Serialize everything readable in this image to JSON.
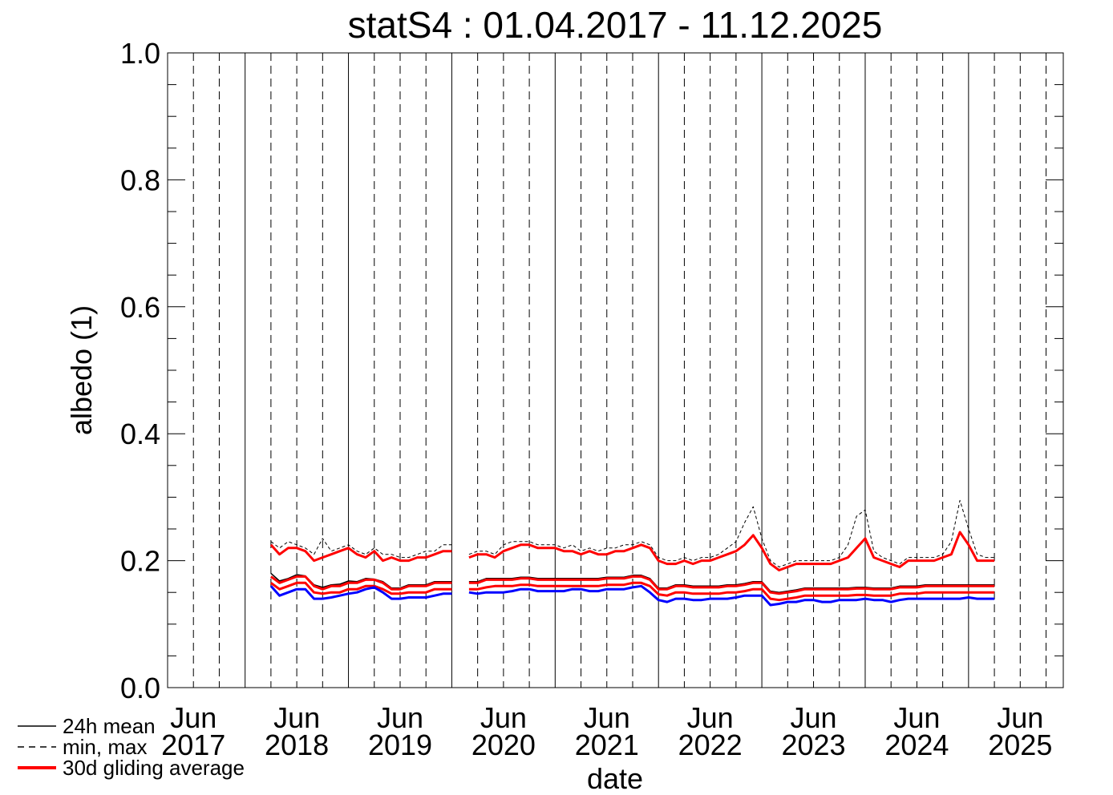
{
  "chart_data": {
    "type": "line",
    "title": "statS4 : 01.04.2017 - 11.12.2025",
    "xlabel": "date",
    "ylabel": "albedo (1)",
    "xlim": [
      "2017-04",
      "2025-12"
    ],
    "ylim": [
      0,
      1
    ],
    "yticks": [
      {
        "value": 0,
        "label": "0.0"
      },
      0.2,
      0.4,
      0.6,
      0.8,
      {
        "value": 1,
        "label": "1.0"
      }
    ],
    "yminorticks": [
      0.05,
      0.1,
      0.15,
      0.25,
      0.3,
      0.35,
      0.45,
      0.5,
      0.55,
      0.65,
      0.7,
      0.75,
      0.85,
      0.9,
      0.95
    ],
    "xticks": [
      {
        "value": "2017-07",
        "label": [
          "Jun",
          "2017"
        ]
      },
      {
        "value": "2018-07",
        "label": [
          "Jun",
          "2018"
        ]
      },
      {
        "value": "2019-07",
        "label": [
          "Jun",
          "2019"
        ]
      },
      {
        "value": "2020-07",
        "label": [
          "Jun",
          "2020"
        ]
      },
      {
        "value": "2021-07",
        "label": [
          "Jun",
          "2021"
        ]
      },
      {
        "value": "2022-07",
        "label": [
          "Jun",
          "2022"
        ]
      },
      {
        "value": "2023-07",
        "label": [
          "Jun",
          "2023"
        ]
      },
      {
        "value": "2024-07",
        "label": [
          "Jun",
          "2024"
        ]
      },
      {
        "value": "2025-07",
        "label": [
          "Jun",
          "2025"
        ]
      }
    ],
    "xgrid_solid": [
      "2018-01",
      "2019-01",
      "2020-01",
      "2021-01",
      "2022-01",
      "2023-01",
      "2024-01",
      "2025-01"
    ],
    "xgrid_dashed": [
      "2017-10",
      "2018-04",
      "2018-10",
      "2019-04",
      "2019-10",
      "2020-04",
      "2020-10",
      "2021-04",
      "2021-10",
      "2022-04",
      "2022-10",
      "2023-04",
      "2023-10",
      "2024-04",
      "2024-10",
      "2025-04",
      "2025-10"
    ],
    "legend": [
      {
        "label": "24h mean",
        "color": "#000000",
        "dash": false,
        "width": 1.5
      },
      {
        "label": "min, max",
        "color": "#000000",
        "dash": true,
        "width": 1.5
      },
      {
        "label": "30d gliding average",
        "color": "#ff0000",
        "dash": false,
        "width": 4
      }
    ],
    "x": [
      "2018-04",
      "2018-05",
      "2018-06",
      "2018-07",
      "2018-08",
      "2018-09",
      "2018-10",
      "2018-11",
      "2018-12",
      "2019-01",
      "2019-02",
      "2019-03",
      "2019-04",
      "2019-05",
      "2019-06",
      "2019-07",
      "2019-08",
      "2019-09",
      "2019-10",
      "2019-11",
      "2019-12",
      "2020-01",
      "2020-02",
      "2020-03",
      "2020-04",
      "2020-05",
      "2020-06",
      "2020-07",
      "2020-08",
      "2020-09",
      "2020-10",
      "2020-11",
      "2020-12",
      "2021-01",
      "2021-02",
      "2021-03",
      "2021-04",
      "2021-05",
      "2021-06",
      "2021-07",
      "2021-08",
      "2021-09",
      "2021-10",
      "2021-11",
      "2021-12",
      "2022-01",
      "2022-02",
      "2022-03",
      "2022-04",
      "2022-05",
      "2022-06",
      "2022-07",
      "2022-08",
      "2022-09",
      "2022-10",
      "2022-11",
      "2022-12",
      "2023-01",
      "2023-02",
      "2023-03",
      "2023-04",
      "2023-05",
      "2023-06",
      "2023-07",
      "2023-08",
      "2023-09",
      "2023-10",
      "2023-11",
      "2023-12",
      "2024-01",
      "2024-02",
      "2024-03",
      "2024-04",
      "2024-05",
      "2024-06",
      "2024-07",
      "2024-08",
      "2024-09",
      "2024-10",
      "2024-11",
      "2024-12",
      "2025-01",
      "2025-02",
      "2025-03",
      "2025-04"
    ],
    "series": [
      {
        "color": "#000000",
        "dash": true,
        "width": 1,
        "values": [
          0.23,
          0.22,
          0.23,
          0.225,
          0.22,
          0.21,
          0.235,
          0.215,
          0.22,
          0.225,
          0.215,
          0.21,
          0.22,
          0.21,
          0.21,
          0.205,
          0.205,
          0.21,
          0.215,
          0.215,
          0.225,
          0.225,
          null,
          0.21,
          0.215,
          0.215,
          0.21,
          0.225,
          0.23,
          0.23,
          0.23,
          0.225,
          0.225,
          0.225,
          0.22,
          0.225,
          0.215,
          0.22,
          0.215,
          0.22,
          0.22,
          0.225,
          0.225,
          0.23,
          0.225,
          0.205,
          0.2,
          0.2,
          0.205,
          0.2,
          0.205,
          0.205,
          0.21,
          0.22,
          0.23,
          0.26,
          0.285,
          0.235,
          0.2,
          0.19,
          0.195,
          0.2,
          0.2,
          0.2,
          0.2,
          0.2,
          0.205,
          0.225,
          0.27,
          0.28,
          0.215,
          0.205,
          0.2,
          0.195,
          0.205,
          0.205,
          0.205,
          0.205,
          0.21,
          0.23,
          0.295,
          0.25,
          0.21,
          0.205,
          0.205
        ]
      },
      {
        "color": "#ff0000",
        "dash": false,
        "width": 3,
        "values": [
          0.225,
          0.21,
          0.22,
          0.22,
          0.215,
          0.2,
          0.205,
          0.21,
          0.215,
          0.22,
          0.21,
          0.205,
          0.215,
          0.2,
          0.205,
          0.2,
          0.2,
          0.205,
          0.205,
          0.21,
          0.215,
          0.215,
          null,
          0.205,
          0.21,
          0.21,
          0.205,
          0.215,
          0.22,
          0.225,
          0.225,
          0.22,
          0.22,
          0.22,
          0.215,
          0.215,
          0.21,
          0.215,
          0.21,
          0.21,
          0.215,
          0.215,
          0.22,
          0.225,
          0.22,
          0.2,
          0.195,
          0.195,
          0.2,
          0.195,
          0.2,
          0.2,
          0.205,
          0.21,
          0.215,
          0.225,
          0.24,
          0.22,
          0.195,
          0.185,
          0.19,
          0.195,
          0.195,
          0.195,
          0.195,
          0.195,
          0.2,
          0.205,
          0.22,
          0.235,
          0.205,
          0.2,
          0.195,
          0.19,
          0.2,
          0.2,
          0.2,
          0.2,
          0.205,
          0.21,
          0.245,
          0.225,
          0.2,
          0.2,
          0.2
        ]
      },
      {
        "color": "#000000",
        "dash": false,
        "width": 1.5,
        "values": [
          0.18,
          0.168,
          0.172,
          0.178,
          0.176,
          0.162,
          0.158,
          0.162,
          0.163,
          0.168,
          0.167,
          0.172,
          0.171,
          0.167,
          0.157,
          0.157,
          0.162,
          0.162,
          0.162,
          0.167,
          0.167,
          0.167,
          null,
          0.167,
          0.167,
          0.172,
          0.172,
          0.172,
          0.172,
          0.174,
          0.174,
          0.172,
          0.172,
          0.172,
          0.172,
          0.172,
          0.172,
          0.172,
          0.172,
          0.174,
          0.174,
          0.174,
          0.177,
          0.177,
          0.172,
          0.157,
          0.157,
          0.162,
          0.162,
          0.16,
          0.16,
          0.16,
          0.16,
          0.162,
          0.162,
          0.164,
          0.167,
          0.167,
          0.152,
          0.15,
          0.152,
          0.154,
          0.157,
          0.157,
          0.157,
          0.157,
          0.157,
          0.157,
          0.158,
          0.158,
          0.157,
          0.157,
          0.157,
          0.16,
          0.16,
          0.16,
          0.162,
          0.162,
          0.162,
          0.162,
          0.162,
          0.162,
          0.162,
          0.162,
          0.162
        ]
      },
      {
        "color": "#ff0000",
        "dash": false,
        "width": 3,
        "values": [
          0.175,
          0.165,
          0.17,
          0.175,
          0.175,
          0.16,
          0.155,
          0.16,
          0.16,
          0.165,
          0.165,
          0.17,
          0.17,
          0.165,
          0.155,
          0.155,
          0.16,
          0.16,
          0.16,
          0.165,
          0.165,
          0.165,
          null,
          0.165,
          0.165,
          0.17,
          0.17,
          0.17,
          0.17,
          0.172,
          0.172,
          0.17,
          0.17,
          0.17,
          0.17,
          0.17,
          0.17,
          0.17,
          0.17,
          0.172,
          0.172,
          0.172,
          0.175,
          0.175,
          0.17,
          0.155,
          0.155,
          0.16,
          0.16,
          0.158,
          0.158,
          0.158,
          0.158,
          0.16,
          0.16,
          0.162,
          0.165,
          0.165,
          0.15,
          0.148,
          0.15,
          0.152,
          0.155,
          0.155,
          0.155,
          0.155,
          0.155,
          0.155,
          0.156,
          0.156,
          0.155,
          0.155,
          0.155,
          0.158,
          0.158,
          0.158,
          0.16,
          0.16,
          0.16,
          0.16,
          0.16,
          0.16,
          0.16,
          0.16,
          0.16
        ]
      },
      {
        "color": "#ff0000",
        "dash": false,
        "width": 3,
        "values": [
          0.165,
          0.155,
          0.16,
          0.165,
          0.165,
          0.15,
          0.148,
          0.15,
          0.15,
          0.155,
          0.155,
          0.16,
          0.16,
          0.155,
          0.148,
          0.148,
          0.15,
          0.15,
          0.15,
          0.155,
          0.155,
          0.155,
          null,
          0.155,
          0.155,
          0.158,
          0.16,
          0.16,
          0.16,
          0.162,
          0.162,
          0.16,
          0.16,
          0.16,
          0.16,
          0.16,
          0.16,
          0.16,
          0.16,
          0.162,
          0.162,
          0.162,
          0.165,
          0.165,
          0.16,
          0.147,
          0.145,
          0.15,
          0.15,
          0.148,
          0.148,
          0.148,
          0.148,
          0.15,
          0.15,
          0.152,
          0.155,
          0.155,
          0.14,
          0.138,
          0.14,
          0.142,
          0.145,
          0.145,
          0.145,
          0.145,
          0.145,
          0.145,
          0.146,
          0.146,
          0.145,
          0.145,
          0.145,
          0.148,
          0.148,
          0.148,
          0.15,
          0.15,
          0.15,
          0.15,
          0.15,
          0.15,
          0.15,
          0.15,
          0.15
        ]
      },
      {
        "color": "#0000ff",
        "dash": false,
        "width": 3,
        "values": [
          0.16,
          0.145,
          0.15,
          0.155,
          0.155,
          0.14,
          0.14,
          0.142,
          0.145,
          0.148,
          0.15,
          0.155,
          0.158,
          0.15,
          0.14,
          0.14,
          0.142,
          0.142,
          0.142,
          0.145,
          0.148,
          0.148,
          null,
          0.15,
          0.148,
          0.15,
          0.15,
          0.15,
          0.152,
          0.155,
          0.155,
          0.152,
          0.152,
          0.152,
          0.152,
          0.155,
          0.155,
          0.152,
          0.152,
          0.155,
          0.155,
          0.155,
          0.158,
          0.16,
          0.15,
          0.138,
          0.135,
          0.14,
          0.14,
          0.138,
          0.138,
          0.14,
          0.14,
          0.14,
          0.142,
          0.145,
          0.145,
          0.145,
          0.13,
          0.132,
          0.135,
          0.135,
          0.138,
          0.138,
          0.135,
          0.135,
          0.138,
          0.138,
          0.138,
          0.14,
          0.138,
          0.138,
          0.135,
          0.138,
          0.14,
          0.14,
          0.14,
          0.14,
          0.14,
          0.14,
          0.14,
          0.142,
          0.14,
          0.14,
          0.14
        ]
      }
    ]
  }
}
